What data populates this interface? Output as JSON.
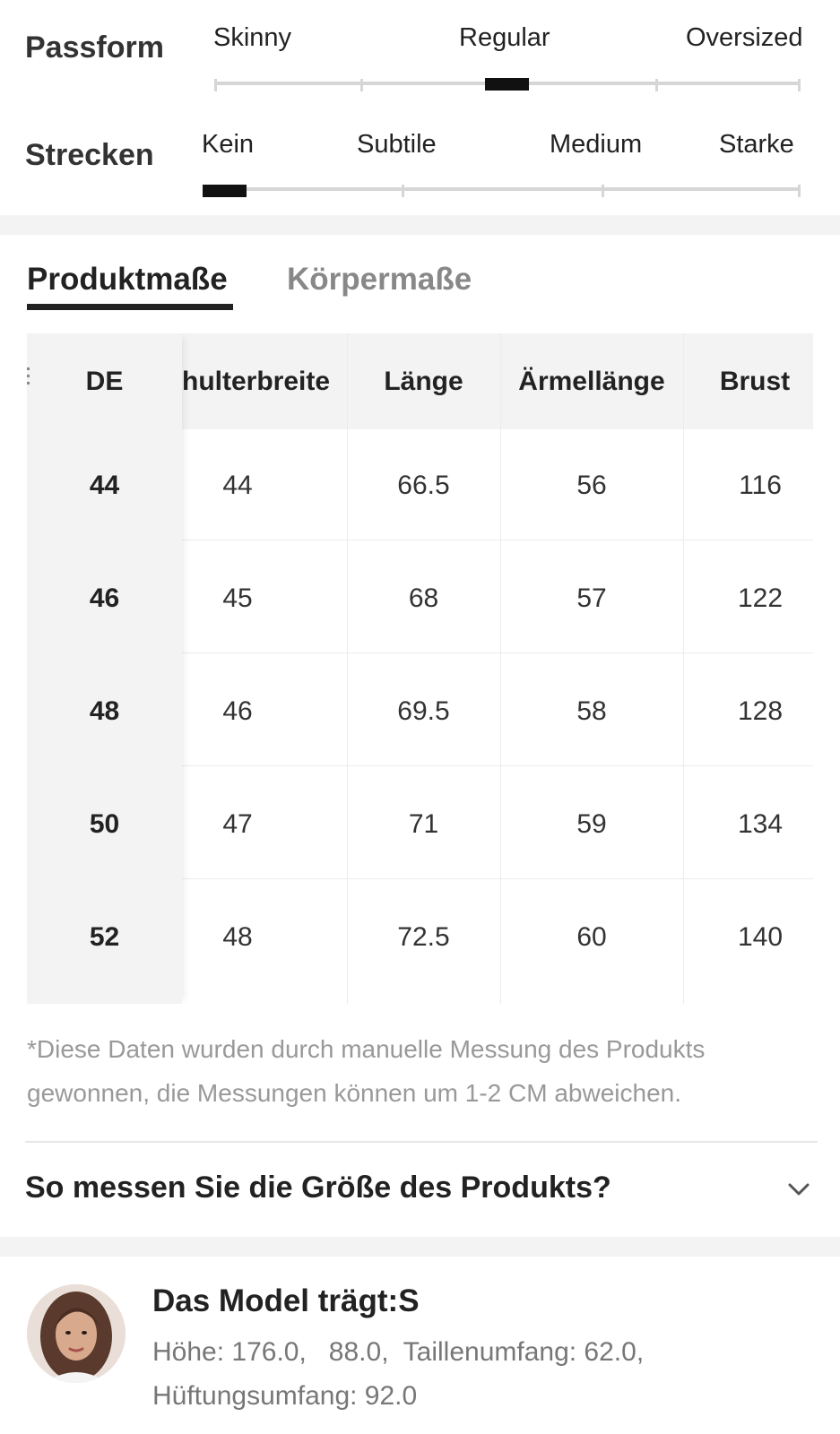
{
  "fit": {
    "label": "Passform",
    "options": [
      "Skinny",
      "Regular",
      "Oversized"
    ],
    "selected": "Regular"
  },
  "stretch": {
    "label": "Strecken",
    "options": [
      "Kein",
      "Subtile",
      "Medium",
      "Starke"
    ],
    "selected": "Kein"
  },
  "tabs": [
    {
      "label": "Produktmaße",
      "active": true
    },
    {
      "label": "Körpermaße",
      "active": false
    }
  ],
  "table": {
    "headers": [
      "DE",
      "hulterbreite",
      "Länge",
      "Ärmellänge",
      "Brust"
    ],
    "rows": [
      [
        "44",
        "44",
        "66.5",
        "56",
        "116"
      ],
      [
        "46",
        "45",
        "68",
        "57",
        "122"
      ],
      [
        "48",
        "46",
        "69.5",
        "58",
        "128"
      ],
      [
        "50",
        "47",
        "71",
        "59",
        "134"
      ],
      [
        "52",
        "48",
        "72.5",
        "60",
        "140"
      ]
    ]
  },
  "note": "*Diese Daten wurden durch manuelle Messung des Produkts gewonnen, die Messungen können um 1-2 CM abweichen.",
  "how_to": {
    "label": "So messen Sie die Größe des Produkts?"
  },
  "model": {
    "title": "Das Model trägt:S",
    "stats_line1": "Höhe: 176.0,   88.0,  Taillenumfang: 62.0,",
    "stats_line2": "Hüftungsumfang: 92.0"
  },
  "colors": {
    "text": "#222222",
    "muted": "#999999",
    "track": "#d6d6d6",
    "marker": "#111111",
    "band": "#f3f3f3"
  }
}
